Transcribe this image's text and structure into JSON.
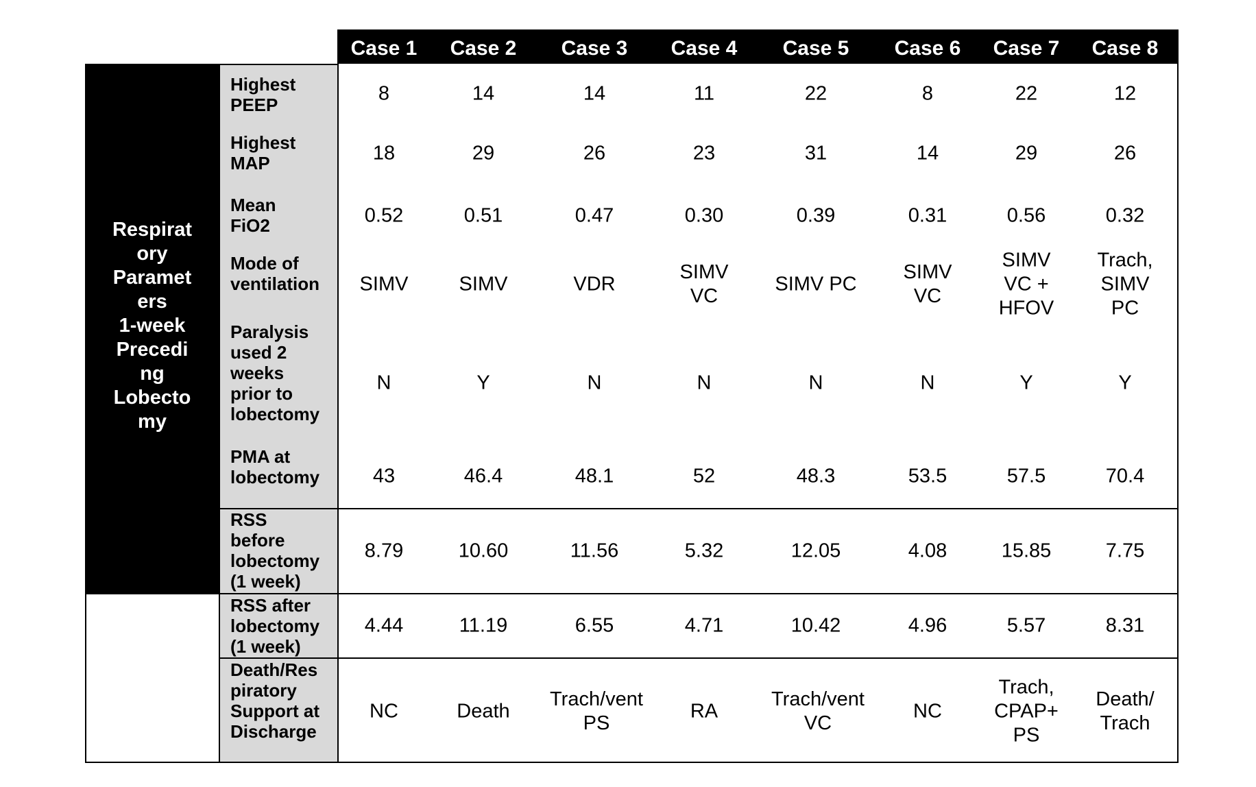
{
  "table": {
    "cases": [
      "Case 1",
      "Case 2",
      "Case 3",
      "Case 4",
      "Case 5",
      "Case 6",
      "Case 7",
      "Case 8"
    ],
    "side_label": "Respirat\nory\nParamet\ners\n1-week\nPrecedi\nng\nLobecto\nmy",
    "rows": [
      {
        "label": "Highest\nPEEP",
        "values": [
          "8",
          "14",
          "14",
          "11",
          "22",
          "8",
          "22",
          "12"
        ]
      },
      {
        "label": "Highest\nMAP",
        "values": [
          "18",
          "29",
          "26",
          "23",
          "31",
          "14",
          "29",
          "26"
        ]
      },
      {
        "label": "Mean\nFiO2",
        "values": [
          "0.52",
          "0.51",
          "0.47",
          "0.30",
          "0.39",
          "0.31",
          "0.56",
          "0.32"
        ]
      },
      {
        "label": "Mode of\nventilation",
        "values": [
          "SIMV",
          "SIMV",
          "VDR",
          "SIMV\nVC",
          "SIMV PC",
          "SIMV\nVC",
          "SIMV\nVC +\nHFOV",
          "Trach,\nSIMV\nPC"
        ]
      },
      {
        "label": "Paralysis\nused 2\nweeks\nprior to\nlobectomy",
        "values": [
          "N",
          "Y",
          "N",
          "N",
          "N",
          "N",
          "Y",
          "Y"
        ]
      },
      {
        "label": "PMA at\nlobectomy",
        "values": [
          "43",
          "46.4",
          "48.1",
          "52",
          "48.3",
          "53.5",
          "57.5",
          "70.4"
        ]
      },
      {
        "label": "RSS\nbefore\nlobectomy\n(1 week)",
        "values": [
          "8.79",
          "10.60",
          "11.56",
          "5.32",
          "12.05",
          "4.08",
          "15.85",
          "7.75"
        ]
      },
      {
        "label": "RSS after\nlobectomy\n(1 week)",
        "values": [
          "4.44",
          "11.19",
          "6.55",
          "4.71",
          "10.42",
          "4.96",
          "5.57",
          "8.31"
        ]
      },
      {
        "label": "Death/Res\npiratory\nSupport at\nDischarge",
        "values": [
          "NC",
          "Death",
          "Trach/vent\nPS",
          "RA",
          "Trach/vent\nVC",
          "NC",
          "Trach,\nCPAP+\nPS",
          "Death/\nTrach"
        ]
      }
    ]
  }
}
